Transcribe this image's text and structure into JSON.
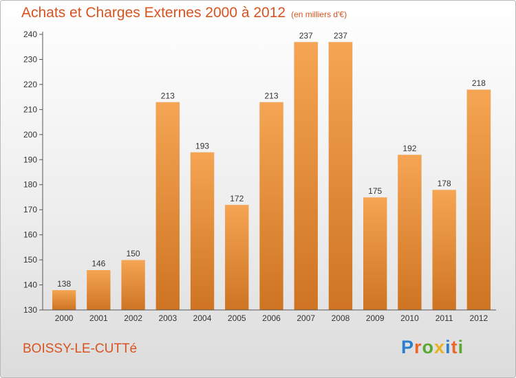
{
  "header": {
    "title": "Achats et Charges Externes 2000 à 2012",
    "subtitle": "(en milliers d'€)"
  },
  "footer": {
    "commune": "BOISSY-LE-CUTTé",
    "logo_letters": [
      {
        "char": "P",
        "color": "#2a7fd0"
      },
      {
        "char": "r",
        "color": "#e9672a"
      },
      {
        "char": "o",
        "color": "#5aa832"
      },
      {
        "char": "x",
        "color": "#e8b21e"
      },
      {
        "char": "i",
        "color": "#2a7fd0"
      },
      {
        "char": "t",
        "color": "#e9672a"
      },
      {
        "char": "i",
        "color": "#5aa832"
      }
    ]
  },
  "colors": {
    "title": "#d9531e",
    "bar_light": "#f5a553",
    "bar_dark": "#ce7422",
    "axis": "#555555",
    "text": "#333333"
  },
  "chart_data": {
    "type": "bar",
    "categories": [
      "2000",
      "2001",
      "2002",
      "2003",
      "2004",
      "2005",
      "2006",
      "2007",
      "2008",
      "2009",
      "2010",
      "2011",
      "2012"
    ],
    "values": [
      138,
      146,
      150,
      213,
      193,
      172,
      213,
      237,
      237,
      175,
      192,
      178,
      218
    ],
    "ylim": [
      130,
      240
    ],
    "yticks": [
      130,
      140,
      150,
      160,
      170,
      180,
      190,
      200,
      210,
      220,
      230,
      240
    ],
    "grid": false,
    "data_labels": true
  }
}
